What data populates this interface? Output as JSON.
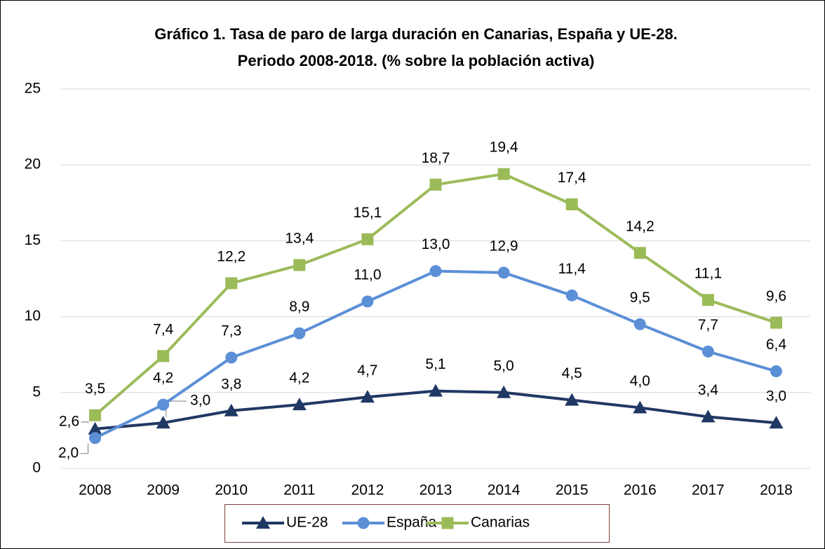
{
  "chart_data": {
    "type": "line",
    "title": [
      "Gráfico 1. Tasa de paro de larga duración en Canarias, España y UE-28.",
      "Periodo 2008-2018. (% sobre la población activa)"
    ],
    "categories": [
      "2008",
      "2009",
      "2010",
      "2011",
      "2012",
      "2013",
      "2014",
      "2015",
      "2016",
      "2017",
      "2018"
    ],
    "series": [
      {
        "name": "UE-28",
        "color": "#203864",
        "marker": "triangle",
        "values": [
          2.6,
          3.0,
          3.8,
          4.2,
          4.7,
          5.1,
          5.0,
          4.5,
          4.0,
          3.4,
          3.0
        ],
        "value_labels": [
          "2,6",
          "3,0",
          "3,8",
          "4,2",
          "4,7",
          "5,1",
          "5,0",
          "4,5",
          "4,0",
          "3,4",
          "3,0"
        ]
      },
      {
        "name": "España",
        "color": "#5b8fd6",
        "marker": "circle",
        "values": [
          2.0,
          4.2,
          7.3,
          8.9,
          11.0,
          13.0,
          12.9,
          11.4,
          9.5,
          7.7,
          6.4
        ],
        "value_labels": [
          "2,0",
          "4,2",
          "7,3",
          "8,9",
          "11,0",
          "13,0",
          "12,9",
          "11,4",
          "9,5",
          "7,7",
          "6,4"
        ]
      },
      {
        "name": "Canarias",
        "color": "#9bbb59",
        "marker": "square",
        "values": [
          3.5,
          7.4,
          12.2,
          13.4,
          15.1,
          18.7,
          19.4,
          17.4,
          14.2,
          11.1,
          9.6
        ],
        "value_labels": [
          "3,5",
          "7,4",
          "12,2",
          "13,4",
          "15,1",
          "18,7",
          "19,4",
          "17,4",
          "14,2",
          "11,1",
          "9,6"
        ]
      }
    ],
    "ylim": [
      0,
      25
    ],
    "yticks": [
      0,
      5,
      10,
      15,
      20,
      25
    ],
    "grid": true,
    "legend": "bottom"
  }
}
